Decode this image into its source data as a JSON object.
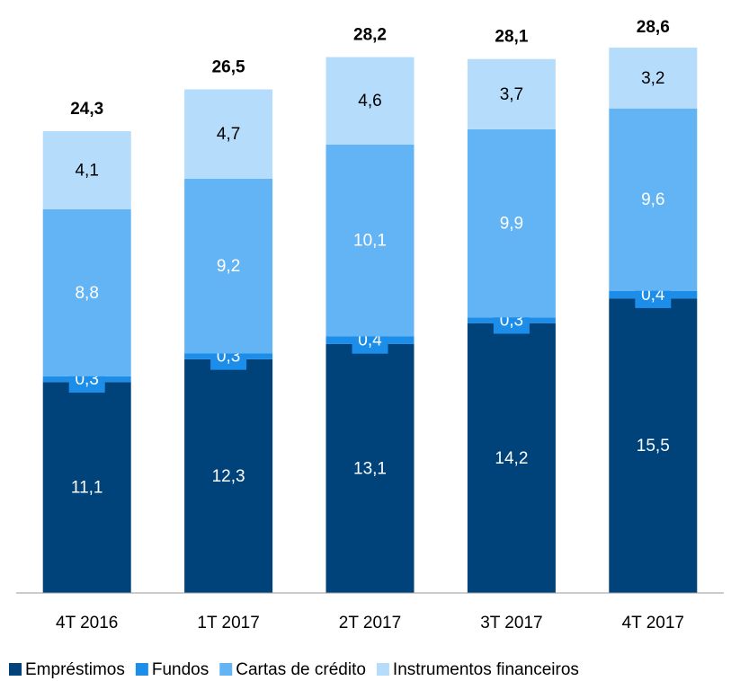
{
  "chart_data": {
    "type": "stacked_bar",
    "categories": [
      "4T 2016",
      "1T 2017",
      "2T 2017",
      "3T 2017",
      "4T 2017"
    ],
    "series": [
      {
        "name": "Empréstimos",
        "color": "#00427a",
        "values": [
          11.1,
          12.3,
          13.1,
          14.2,
          15.5
        ],
        "value_labels": [
          "11,1",
          "12,3",
          "13,1",
          "14,2",
          "15,5"
        ]
      },
      {
        "name": "Fundos",
        "color": "#1c8de8",
        "values": [
          0.3,
          0.3,
          0.4,
          0.3,
          0.4
        ],
        "value_labels": [
          "0,3",
          "0,3",
          "0,4",
          "0,3",
          "0,4"
        ]
      },
      {
        "name": "Cartas de crédito",
        "color": "#63b4f5",
        "values": [
          8.8,
          9.2,
          10.1,
          9.9,
          9.6
        ],
        "value_labels": [
          "8,8",
          "9,2",
          "10,1",
          "9,9",
          "9,6"
        ]
      },
      {
        "name": "Instrumentos financeiros",
        "color": "#b5dcfb",
        "values": [
          4.1,
          4.7,
          4.6,
          3.7,
          3.2
        ],
        "value_labels": [
          "4,1",
          "4,7",
          "4,6",
          "3,7",
          "3,2"
        ]
      }
    ],
    "totals": [
      24.3,
      26.5,
      28.2,
      28.1,
      28.6
    ],
    "total_labels": [
      "24,3",
      "26,5",
      "28,2",
      "28,1",
      "28,6"
    ],
    "ylim": [
      0,
      30
    ]
  }
}
